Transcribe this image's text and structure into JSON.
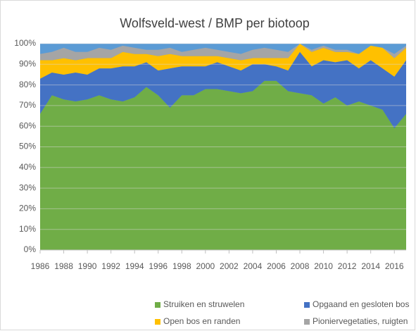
{
  "chart_data": {
    "type": "stacked_area",
    "title": "Wolfsveld-west / BMP per biotoop",
    "x": [
      1986,
      1987,
      1988,
      1989,
      1990,
      1991,
      1992,
      1993,
      1994,
      1995,
      1996,
      1997,
      1998,
      1999,
      2000,
      2001,
      2002,
      2003,
      2004,
      2005,
      2006,
      2007,
      2008,
      2009,
      2010,
      2011,
      2012,
      2013,
      2014,
      2015,
      2016,
      2017
    ],
    "xlim": [
      1986,
      2017
    ],
    "xticks": [
      1986,
      1988,
      1990,
      1992,
      1994,
      1996,
      1998,
      2000,
      2002,
      2004,
      2006,
      2008,
      2010,
      2012,
      2014,
      2016
    ],
    "ylim": [
      0,
      100
    ],
    "yticks": [
      {
        "value": 0,
        "label": "0%"
      },
      {
        "value": 10,
        "label": "10%"
      },
      {
        "value": 20,
        "label": "20%"
      },
      {
        "value": 30,
        "label": "30%"
      },
      {
        "value": 40,
        "label": "40%"
      },
      {
        "value": 50,
        "label": "50%"
      },
      {
        "value": 60,
        "label": "60%"
      },
      {
        "value": 70,
        "label": "70%"
      },
      {
        "value": 80,
        "label": "80%"
      },
      {
        "value": 90,
        "label": "90%"
      },
      {
        "value": 100,
        "label": "100%"
      }
    ],
    "grid": true,
    "legend": "bottom",
    "series": [
      {
        "name": "Struiken en struwelen",
        "color": "#70ad47",
        "values": [
          66,
          75,
          73,
          72,
          73,
          75,
          73,
          72,
          74,
          79,
          75,
          69,
          75,
          75,
          78,
          78,
          77,
          76,
          77,
          82,
          82,
          77,
          76,
          75,
          71,
          74,
          70,
          72,
          70,
          68,
          59,
          66
        ]
      },
      {
        "name": "Opgaand en gesloten bos",
        "color": "#4472c4",
        "values": [
          17,
          11,
          12,
          14,
          12,
          13,
          15,
          17,
          15,
          12,
          12,
          19,
          14,
          14,
          11,
          13,
          12,
          11,
          13,
          8,
          7,
          10,
          20,
          14,
          21,
          17,
          22,
          16,
          22,
          20,
          25,
          26
        ]
      },
      {
        "name": "Open bos en randen",
        "color": "#ffc000",
        "values": [
          9,
          6,
          8,
          6,
          8,
          5,
          5,
          7,
          6,
          4,
          7,
          7,
          5,
          5,
          5,
          3,
          4,
          5,
          3,
          3,
          4,
          6,
          4,
          7,
          6,
          5,
          4,
          7,
          7,
          10,
          9,
          6
        ]
      },
      {
        "name": "Pioniervegetaties, ruigten",
        "color": "#a5a5a5",
        "values": [
          3,
          4,
          5,
          4,
          3,
          5,
          4,
          3,
          3,
          2,
          3,
          3,
          2,
          3,
          4,
          3,
          3,
          3,
          4,
          5,
          4,
          3,
          0,
          1,
          1,
          1,
          1,
          0,
          0,
          0,
          2,
          1
        ]
      }
    ]
  }
}
